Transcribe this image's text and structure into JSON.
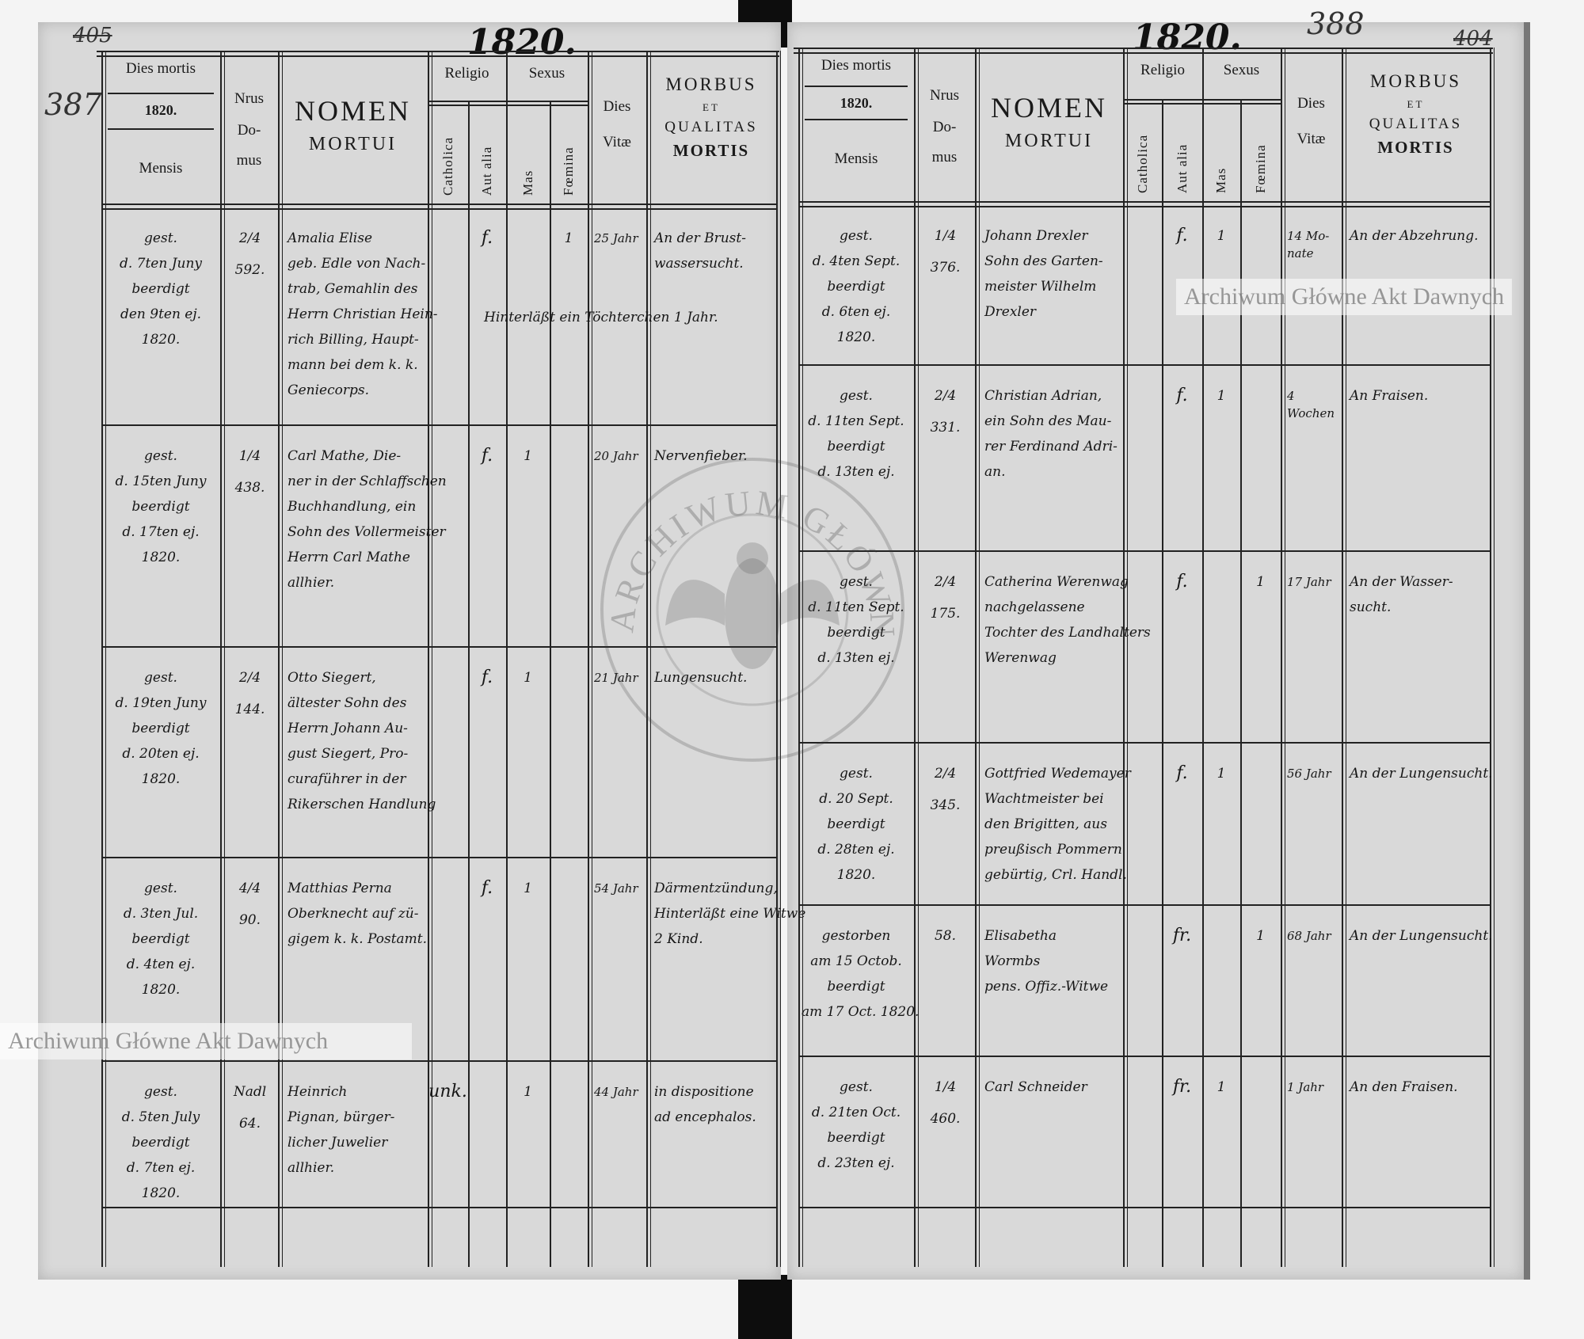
{
  "document": {
    "watermark": "Archiwum Główne Akt Dawnych",
    "stamp_text": "ARCHIWUM GŁÓWNE AKT DAWNYCH",
    "header_labels": {
      "dies_mortis": "Dies mortis",
      "year": "1820.",
      "mensis": "Mensis",
      "nrus": "Nrus",
      "do": "Do-",
      "mus": "mus",
      "nomen": "NOMEN",
      "mortui": "MORTUI",
      "religio": "Religio",
      "sexus": "Sexus",
      "catholica": "Catholica",
      "aut_alia": "Aut alia",
      "mas": "Mas",
      "foemina": "Fœmina",
      "dies": "Dies",
      "vitae": "Vitæ",
      "morbus": "MORBUS",
      "et": "ET",
      "qualitas": "QUALITAS",
      "mortis": "MORTIS"
    },
    "pages": [
      {
        "year_heading": "1820.",
        "folio_old": "405",
        "folio_new": "387",
        "entries": [
          {
            "date": [
              "gest.",
              "d. 7ten Juny",
              "beerdigt",
              "den 9ten ej.",
              "1820."
            ],
            "house": [
              "2/4",
              "592."
            ],
            "name": [
              "Amalia Elise",
              "geb. Edle von Nach-",
              "trab, Gemahlin des",
              "Herrn Christian Hein-",
              "rich Billing, Haupt-",
              "mann bei dem k. k.",
              "Geniecorps."
            ],
            "religio": "f.",
            "religio_col": "aut_alia",
            "sex": "foemina",
            "sex_mark": "1",
            "age": "25 Jahr",
            "morbus": [
              "An der Brust-",
              "wassersucht."
            ],
            "note": "Hinterläßt ein Töchterchen 1 Jahr."
          },
          {
            "date": [
              "gest.",
              "d. 15ten Juny",
              "beerdigt",
              "d. 17ten ej.",
              "1820."
            ],
            "house": [
              "1/4",
              "438."
            ],
            "name": [
              "Carl Mathe, Die-",
              "ner in der Schlaffschen",
              "Buchhandlung, ein",
              "Sohn des Vollermeister",
              "Herrn Carl Mathe",
              "allhier."
            ],
            "religio": "f.",
            "religio_col": "aut_alia",
            "sex": "mas",
            "sex_mark": "1",
            "age": "20 Jahr",
            "morbus": [
              "Nervenfieber."
            ]
          },
          {
            "date": [
              "gest.",
              "d. 19ten Juny",
              "beerdigt",
              "d. 20ten ej.",
              "1820."
            ],
            "house": [
              "2/4",
              "144."
            ],
            "name": [
              "Otto Siegert,",
              "ältester Sohn des",
              "Herrn Johann Au-",
              "gust Siegert, Pro-",
              "curaführer in der",
              "Rikerschen Handlung"
            ],
            "religio": "f.",
            "religio_col": "aut_alia",
            "sex": "mas",
            "sex_mark": "1",
            "age": "21 Jahr",
            "morbus": [
              "Lungensucht."
            ]
          },
          {
            "date": [
              "gest.",
              "d. 3ten Jul.",
              "beerdigt",
              "d. 4ten ej.",
              "1820."
            ],
            "house": [
              "4/4",
              "90."
            ],
            "name": [
              "Matthias Perna",
              "Oberknecht auf zü-",
              "gigem k. k. Postamt."
            ],
            "religio": "f.",
            "religio_col": "aut_alia",
            "sex": "mas",
            "sex_mark": "1",
            "age": "54 Jahr",
            "morbus": [
              "Därmentzündung,",
              "Hinterläßt eine Witwe",
              "2 Kind."
            ]
          },
          {
            "date": [
              "gest.",
              "d. 5ten July",
              "beerdigt",
              "d. 7ten ej.",
              "1820."
            ],
            "house": [
              "Nadl",
              "64."
            ],
            "name": [
              "Heinrich",
              "Pignan, bürger-",
              "licher Juwelier",
              "allhier."
            ],
            "religio": "unk.",
            "religio_col": "catholica",
            "sex": "mas",
            "sex_mark": "1",
            "age": "44 Jahr",
            "morbus": [
              "in dispositione",
              "ad encephalos."
            ]
          }
        ]
      },
      {
        "year_heading": "1820.",
        "folio_old": "404",
        "folio_new": "388",
        "entries": [
          {
            "date": [
              "gest.",
              "d. 4ten Sept.",
              "beerdigt",
              "d. 6ten ej.",
              "1820."
            ],
            "house": [
              "1/4",
              "376."
            ],
            "name": [
              "Johann Drexler",
              "Sohn des Garten-",
              "meister Wilhelm",
              "Drexler"
            ],
            "religio": "f.",
            "religio_col": "aut_alia",
            "sex": "mas",
            "sex_mark": "1",
            "age": "14 Mo-nate",
            "morbus": [
              "An der Abzehrung."
            ]
          },
          {
            "date": [
              "gest.",
              "d. 11ten Sept.",
              "beerdigt",
              "d. 13ten ej."
            ],
            "house": [
              "2/4",
              "331."
            ],
            "name": [
              "Christian Adrian,",
              "ein Sohn des Mau-",
              "rer Ferdinand Adri-",
              "an."
            ],
            "religio": "f.",
            "religio_col": "aut_alia",
            "sex": "mas",
            "sex_mark": "1",
            "age": "4 Wochen",
            "morbus": [
              "An Fraisen."
            ]
          },
          {
            "date": [
              "gest.",
              "d. 11ten Sept.",
              "beerdigt",
              "d. 13ten ej."
            ],
            "house": [
              "2/4",
              "175."
            ],
            "name": [
              "Catherina Werenwag",
              "nachgelassene",
              "Tochter des Landhalters",
              "Werenwag"
            ],
            "religio": "f.",
            "religio_col": "aut_alia",
            "sex": "foemina",
            "sex_mark": "1",
            "age": "17 Jahr",
            "morbus": [
              "An der Wasser-",
              "sucht."
            ]
          },
          {
            "date": [
              "gest.",
              "d. 20 Sept.",
              "beerdigt",
              "d. 28ten ej.",
              "1820."
            ],
            "house": [
              "2/4",
              "345."
            ],
            "name": [
              "Gottfried Wedemayer",
              "Wachtmeister bei",
              "den Brigitten, aus",
              "preußisch Pommern",
              "gebürtig, Crl. Handl."
            ],
            "religio": "f.",
            "religio_col": "aut_alia",
            "sex": "mas",
            "sex_mark": "1",
            "age": "56 Jahr",
            "morbus": [
              "An der Lungensucht."
            ]
          },
          {
            "date": [
              "gestorben",
              "am 15 Octob.",
              "beerdigt",
              "am 17 Oct. 1820."
            ],
            "house": [
              "58."
            ],
            "name": [
              "Elisabetha",
              "Wormbs",
              "pens. Offiz.-Witwe"
            ],
            "religio": "fr.",
            "religio_col": "aut_alia",
            "sex": "foemina",
            "sex_mark": "1",
            "age": "68 Jahr",
            "morbus": [
              "An der Lungensucht."
            ]
          },
          {
            "date": [
              "gest.",
              "d. 21ten Oct.",
              "beerdigt",
              "d. 23ten ej."
            ],
            "house": [
              "1/4",
              "460."
            ],
            "name": [
              "Carl Schneider"
            ],
            "religio": "fr.",
            "religio_col": "aut_alia",
            "sex": "mas",
            "sex_mark": "1",
            "age": "1 Jahr",
            "morbus": [
              "An den Fraisen."
            ]
          }
        ]
      }
    ]
  }
}
